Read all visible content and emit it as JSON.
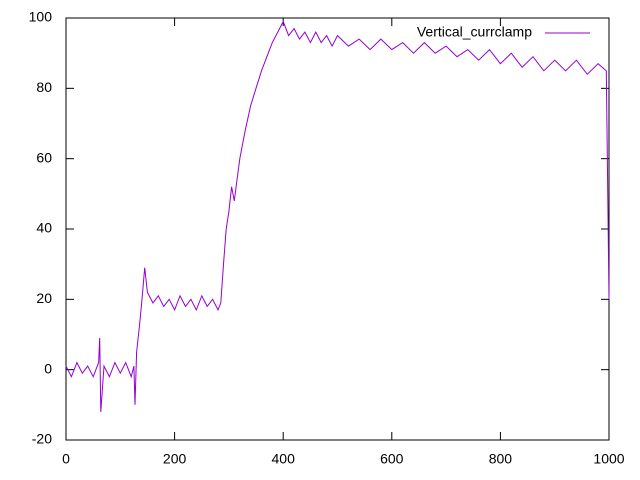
{
  "chart_data": {
    "type": "line",
    "x": [
      0,
      10,
      20,
      30,
      40,
      50,
      60,
      62,
      64,
      70,
      80,
      90,
      100,
      110,
      120,
      125,
      127,
      130,
      135,
      140,
      145,
      150,
      160,
      170,
      180,
      190,
      200,
      210,
      220,
      230,
      240,
      250,
      260,
      270,
      280,
      285,
      290,
      295,
      300,
      305,
      310,
      315,
      320,
      330,
      340,
      350,
      360,
      370,
      380,
      390,
      400,
      410,
      420,
      430,
      440,
      450,
      460,
      470,
      480,
      490,
      500,
      520,
      540,
      560,
      580,
      600,
      620,
      640,
      660,
      680,
      700,
      720,
      740,
      760,
      780,
      800,
      820,
      840,
      860,
      880,
      900,
      920,
      940,
      960,
      980,
      995,
      1000
    ],
    "series": [
      {
        "name": "Vertical_currclamp",
        "color": "#9400d3",
        "values": [
          1,
          -2,
          2,
          -1,
          1,
          -2,
          2,
          9,
          -12,
          1,
          -2,
          2,
          -1,
          2,
          -2,
          1,
          -10,
          5,
          12,
          20,
          29,
          22,
          19,
          21,
          18,
          20,
          17,
          21,
          18,
          20,
          17,
          21,
          18,
          20,
          17,
          19,
          30,
          40,
          45,
          52,
          48,
          54,
          60,
          68,
          75,
          80,
          85,
          89,
          93,
          96,
          99,
          95,
          97,
          94,
          96,
          93,
          96,
          93,
          95,
          92,
          95,
          92,
          94,
          91,
          94,
          91,
          93,
          90,
          93,
          90,
          92,
          89,
          91,
          88,
          91,
          87,
          90,
          86,
          89,
          85,
          88,
          85,
          88,
          84,
          87,
          85,
          20
        ]
      }
    ],
    "xlim": [
      0,
      1000
    ],
    "xticks": [
      0,
      200,
      400,
      600,
      800,
      1000
    ],
    "ylim": [
      -20,
      100
    ],
    "yticks": [
      -20,
      0,
      20,
      40,
      60,
      80,
      100
    ],
    "grid": false,
    "legend": "top-right"
  }
}
